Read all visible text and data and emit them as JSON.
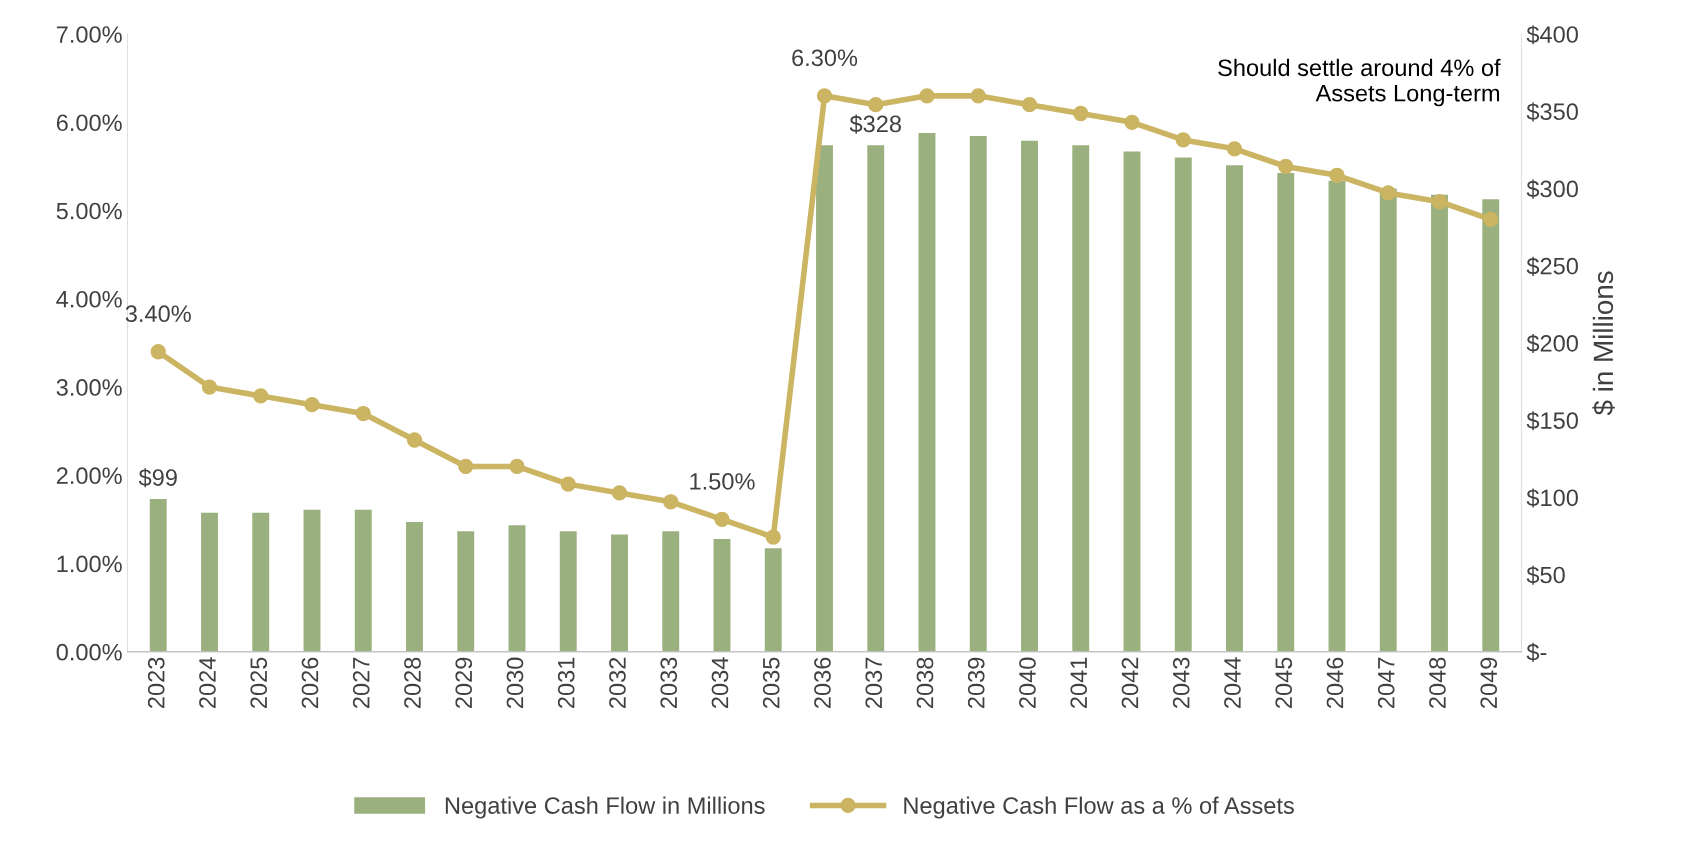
{
  "chart_data": {
    "type": "bar",
    "categories": [
      "2023",
      "2024",
      "2025",
      "2026",
      "2027",
      "2028",
      "2029",
      "2030",
      "2031",
      "2032",
      "2033",
      "2034",
      "2035",
      "2036",
      "2037",
      "2038",
      "2039",
      "2040",
      "2041",
      "2042",
      "2043",
      "2044",
      "2045",
      "2046",
      "2047",
      "2048",
      "2049"
    ],
    "series": [
      {
        "name": "Negative Cash Flow in Millions",
        "axis": "y2",
        "color": "#9bb07f",
        "values": [
          99,
          90,
          90,
          92,
          92,
          84,
          78,
          82,
          78,
          76,
          78,
          73,
          67,
          328,
          328,
          336,
          334,
          331,
          328,
          324,
          320,
          315,
          310,
          305,
          300,
          296,
          293
        ],
        "value_labels": [
          "$99",
          null,
          null,
          null,
          null,
          null,
          null,
          null,
          null,
          null,
          null,
          null,
          null,
          null,
          "$328",
          null,
          null,
          null,
          null,
          null,
          null,
          null,
          null,
          null,
          null,
          null,
          null
        ]
      },
      {
        "name": "Negative Cash Flow as a % of Assets",
        "type": "line",
        "axis": "y",
        "color": "#cbb462",
        "marker": "circle",
        "line_style": "solid",
        "values": [
          3.4,
          3.0,
          2.9,
          2.8,
          2.7,
          2.4,
          2.1,
          2.1,
          1.9,
          1.8,
          1.7,
          1.5,
          1.3,
          6.3,
          6.2,
          6.3,
          6.3,
          6.2,
          6.1,
          6.0,
          5.8,
          5.7,
          5.5,
          5.4,
          5.2,
          5.1,
          4.9
        ],
        "value_labels": [
          "3.40%",
          null,
          null,
          null,
          null,
          null,
          null,
          null,
          null,
          null,
          null,
          "1.50%",
          null,
          "6.30%",
          null,
          null,
          null,
          null,
          null,
          null,
          null,
          null,
          null,
          null,
          null,
          null,
          null
        ]
      }
    ],
    "ylim": [
      0,
      7
    ],
    "yticks": [
      {
        "value": 0,
        "label": "0.00%"
      },
      {
        "value": 1,
        "label": "1.00%"
      },
      {
        "value": 2,
        "label": "2.00%"
      },
      {
        "value": 3,
        "label": "3.00%"
      },
      {
        "value": 4,
        "label": "4.00%"
      },
      {
        "value": 5,
        "label": "5.00%"
      },
      {
        "value": 6,
        "label": "6.00%"
      },
      {
        "value": 7,
        "label": "7.00%"
      }
    ],
    "y2lim": [
      0,
      400
    ],
    "y2ticks": [
      {
        "value": 0,
        "label": "$-"
      },
      {
        "value": 50,
        "label": "$50"
      },
      {
        "value": 100,
        "label": "$100"
      },
      {
        "value": 150,
        "label": "$150"
      },
      {
        "value": 200,
        "label": "$200"
      },
      {
        "value": 250,
        "label": "$250"
      },
      {
        "value": 300,
        "label": "$300"
      },
      {
        "value": 350,
        "label": "$350"
      },
      {
        "value": 400,
        "label": "$400"
      }
    ],
    "y2label": "$ in Millions",
    "annotations": [
      "Should settle around 4% of\nAssets Long-term"
    ],
    "legend": "bottom",
    "grid": false
  }
}
